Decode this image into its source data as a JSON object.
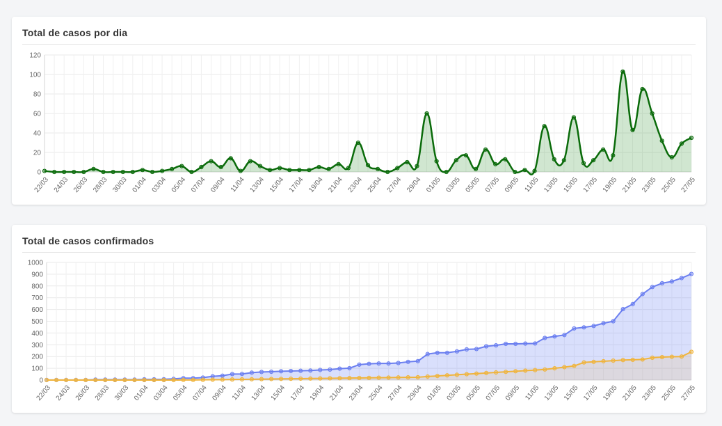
{
  "cards": [
    {
      "title": "Total de casos por dia"
    },
    {
      "title": "Total de casos confirmados"
    }
  ],
  "chart_data": [
    {
      "type": "area",
      "title": "Total de casos por dia",
      "y_ticks": [
        0,
        20,
        40,
        60,
        80,
        100,
        120
      ],
      "ylim": [
        0,
        120
      ],
      "x_tick_labels": [
        "22/03",
        "24/03",
        "26/03",
        "28/03",
        "30/03",
        "01/04",
        "03/04",
        "05/04",
        "07/04",
        "09/04",
        "11/04",
        "13/04",
        "15/04",
        "17/04",
        "19/04",
        "21/04",
        "23/04",
        "25/04",
        "27/04",
        "29/04",
        "01/05",
        "03/05",
        "05/05",
        "07/05",
        "09/05",
        "11/05",
        "13/05",
        "15/05",
        "17/05",
        "19/05",
        "21/05",
        "23/05",
        "25/05",
        "27/05"
      ],
      "grid": true,
      "curve": "smooth",
      "colors": {
        "line": "#0a6b0a",
        "fill": "rgba(40,140,40,0.22)"
      },
      "series": [
        {
          "values": [
            1,
            0,
            0,
            0,
            0,
            3,
            0,
            0,
            0,
            0,
            2,
            0,
            1,
            3,
            6,
            0,
            5,
            11,
            5,
            14,
            1,
            11,
            6,
            2,
            4,
            2,
            2,
            2,
            5,
            3,
            8,
            4,
            30,
            7,
            3,
            0,
            4,
            10,
            6,
            60,
            11,
            0,
            12,
            17,
            3,
            23,
            8,
            13,
            0,
            2,
            1,
            47,
            13,
            12,
            56,
            9,
            12,
            23,
            17,
            103,
            43,
            85,
            60,
            32,
            15,
            29,
            35
          ]
        }
      ]
    },
    {
      "type": "area",
      "title": "Total de casos confirmados",
      "y_ticks": [
        0,
        100,
        200,
        300,
        400,
        500,
        600,
        700,
        800,
        900,
        1000
      ],
      "ylim": [
        0,
        1000
      ],
      "x_tick_labels": [
        "22/03",
        "24/03",
        "26/03",
        "28/03",
        "30/03",
        "01/04",
        "03/04",
        "05/04",
        "07/04",
        "09/04",
        "11/04",
        "13/04",
        "15/04",
        "17/04",
        "19/04",
        "21/04",
        "23/04",
        "25/04",
        "27/04",
        "29/04",
        "01/05",
        "03/05",
        "05/05",
        "07/05",
        "09/05",
        "11/05",
        "13/05",
        "15/05",
        "17/05",
        "19/05",
        "21/05",
        "23/05",
        "25/05",
        "27/05"
      ],
      "grid": true,
      "curve": "straight",
      "series": [
        {
          "color": "#6b7ff0",
          "fill": "rgba(120,140,245,0.28)",
          "values": [
            1,
            1,
            1,
            1,
            1,
            4,
            4,
            4,
            4,
            4,
            6,
            6,
            7,
            10,
            16,
            16,
            21,
            32,
            37,
            51,
            52,
            63,
            69,
            71,
            75,
            77,
            79,
            81,
            86,
            89,
            97,
            101,
            131,
            138,
            141,
            141,
            145,
            155,
            161,
            221,
            232,
            232,
            244,
            261,
            264,
            287,
            295,
            308,
            308,
            310,
            311,
            358,
            371,
            383,
            439,
            448,
            460,
            483,
            500,
            603,
            646,
            731,
            791,
            823,
            838,
            867,
            902
          ]
        },
        {
          "color": "#f0b43c",
          "fill": "rgba(240,180,60,0.15)",
          "values": [
            0,
            0,
            0,
            0,
            0,
            0,
            0,
            0,
            0,
            0,
            0,
            0,
            0,
            0,
            1,
            1,
            2,
            3,
            4,
            5,
            6,
            7,
            8,
            9,
            10,
            11,
            12,
            13,
            14,
            15,
            16,
            17,
            18,
            19,
            20,
            21,
            22,
            23,
            24,
            30,
            35,
            40,
            45,
            50,
            55,
            60,
            65,
            70,
            75,
            80,
            85,
            90,
            100,
            110,
            120,
            150,
            155,
            160,
            165,
            170,
            172,
            175,
            190,
            195,
            198,
            200,
            240
          ]
        }
      ]
    }
  ]
}
